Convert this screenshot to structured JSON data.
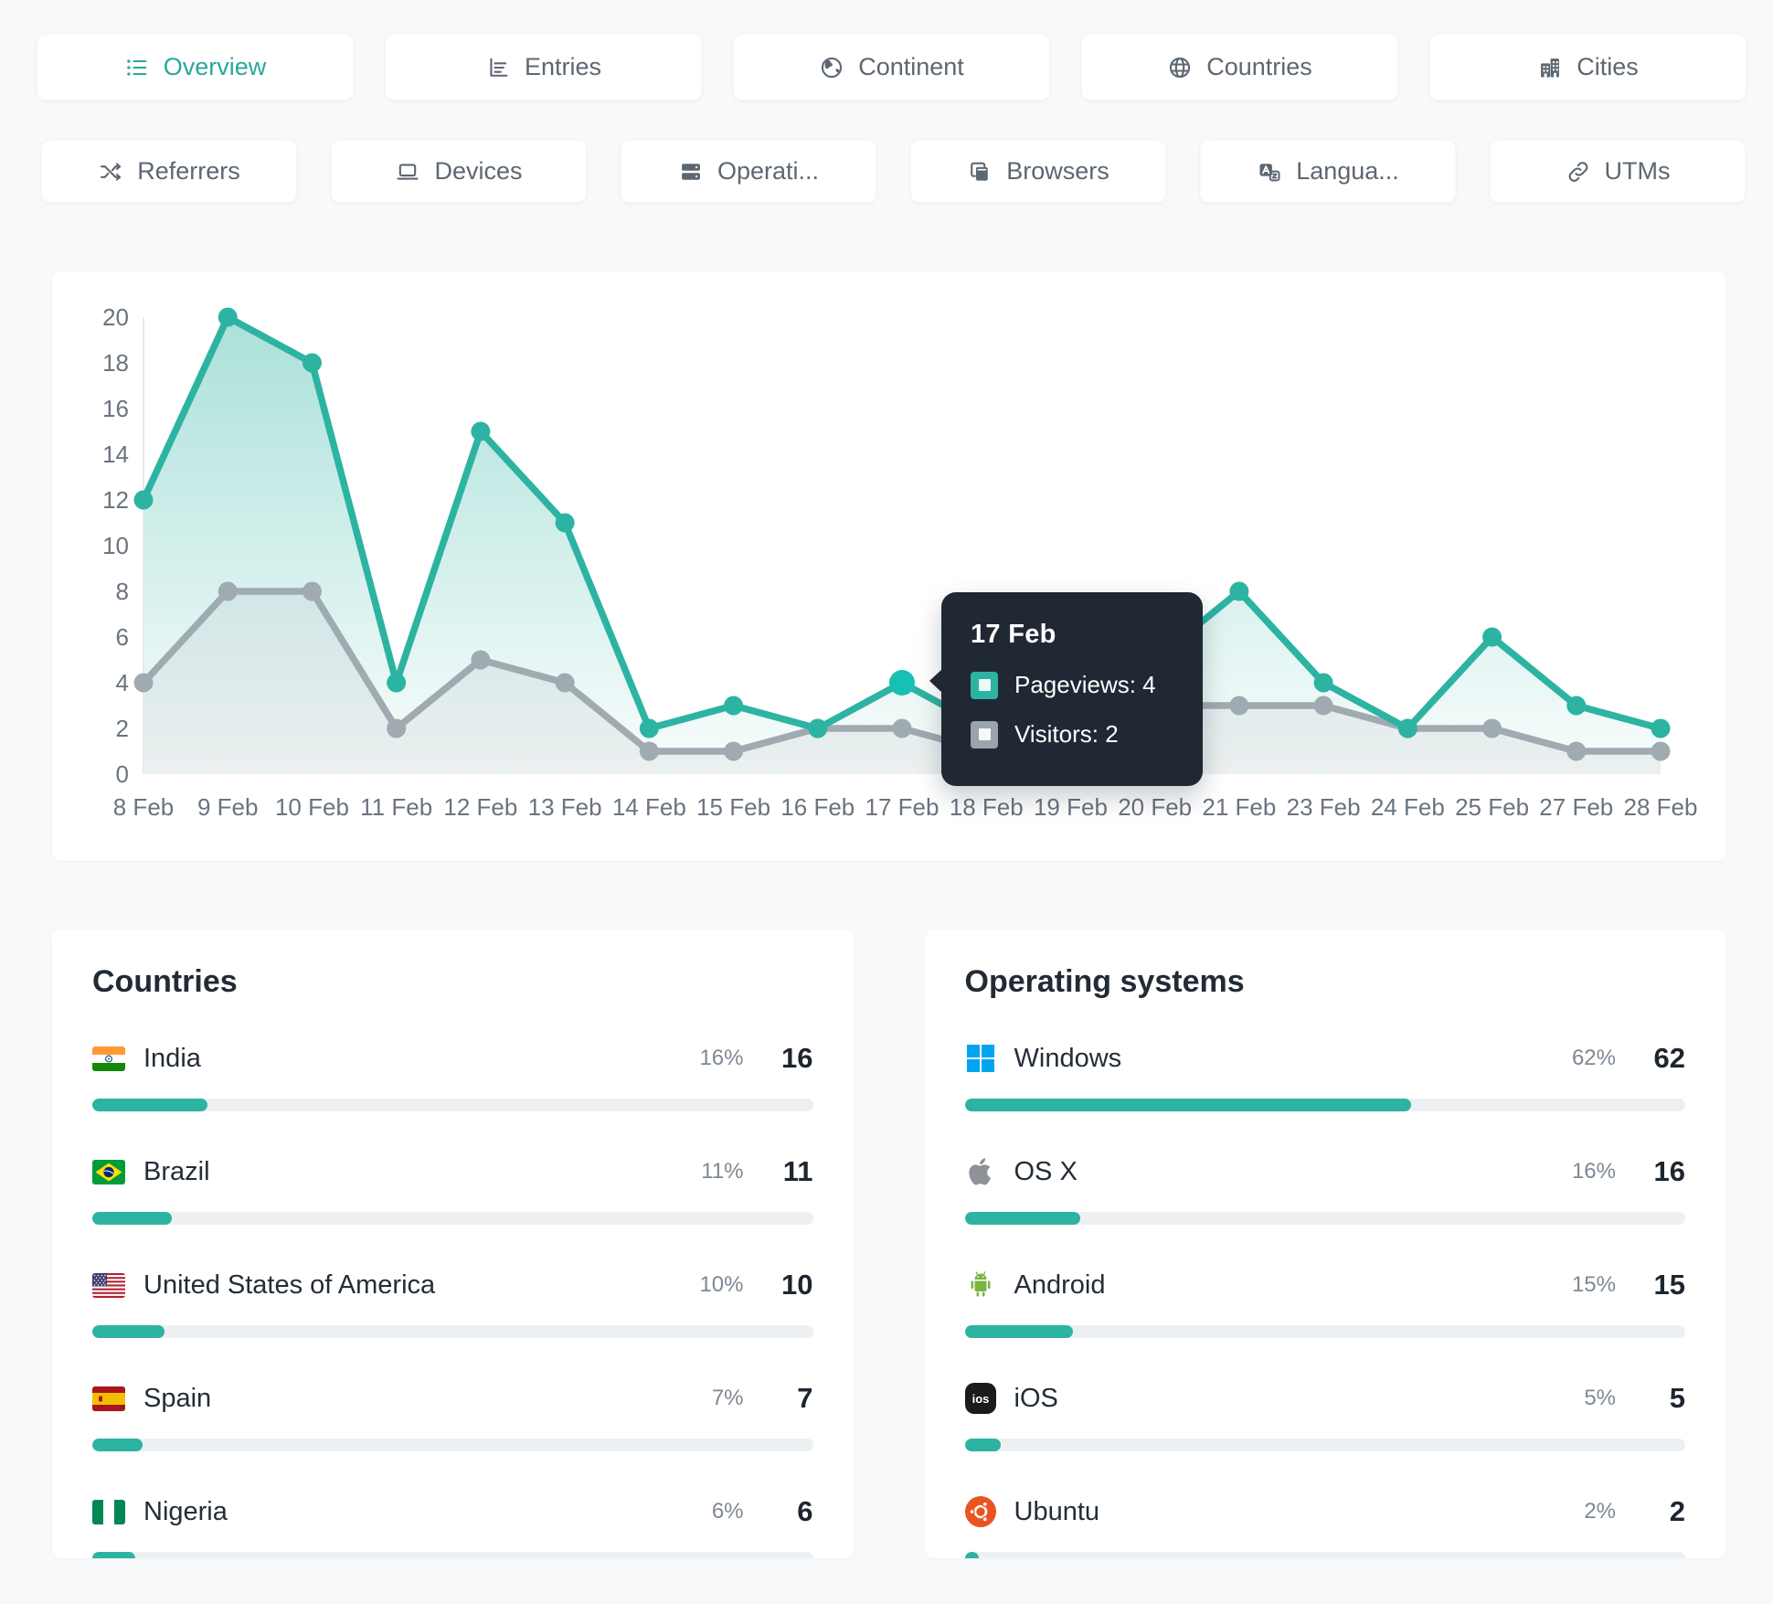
{
  "colors": {
    "accent": "#2db3a2",
    "secondary_line": "#a0aab1",
    "highlight_dot": "#16c0b2",
    "tooltip_bg": "#202834",
    "page_bg": "#f7f9fa",
    "axis_text": "#6a737e"
  },
  "nav": {
    "row1": [
      {
        "label": "Overview",
        "icon": "list-icon",
        "active": true
      },
      {
        "label": "Entries",
        "icon": "entries-chart-icon",
        "active": false
      },
      {
        "label": "Continent",
        "icon": "continent-globe-icon",
        "active": false
      },
      {
        "label": "Countries",
        "icon": "countries-globe-icon",
        "active": false
      },
      {
        "label": "Cities",
        "icon": "cities-building-icon",
        "active": false
      }
    ],
    "row2": [
      {
        "label": "Referrers",
        "icon": "shuffle-icon",
        "active": false
      },
      {
        "label": "Devices",
        "icon": "laptop-icon",
        "active": false
      },
      {
        "label": "Operati...",
        "icon": "server-icon",
        "active": false
      },
      {
        "label": "Browsers",
        "icon": "browser-icon",
        "active": false
      },
      {
        "label": "Langua...",
        "icon": "translate-icon",
        "active": false
      },
      {
        "label": "UTMs",
        "icon": "link-icon",
        "active": false
      }
    ]
  },
  "chart_data": {
    "type": "line",
    "categories": [
      "8 Feb",
      "9 Feb",
      "10 Feb",
      "11 Feb",
      "12 Feb",
      "13 Feb",
      "14 Feb",
      "15 Feb",
      "16 Feb",
      "17 Feb",
      "18 Feb",
      "19 Feb",
      "20 Feb",
      "21 Feb",
      "23 Feb",
      "24 Feb",
      "25 Feb",
      "27 Feb",
      "28 Feb"
    ],
    "series": [
      {
        "name": "Pageviews",
        "color": "#2db3a2",
        "values": [
          12,
          20,
          18,
          4,
          15,
          11,
          2,
          3,
          2,
          4,
          2,
          3,
          5,
          8,
          4,
          2,
          6,
          3,
          2
        ]
      },
      {
        "name": "Visitors",
        "color": "#a0aab1",
        "values": [
          4,
          8,
          8,
          2,
          5,
          4,
          1,
          1,
          2,
          2,
          1,
          1,
          3,
          3,
          3,
          2,
          2,
          1,
          1
        ]
      }
    ],
    "title": "",
    "xlabel": "",
    "ylabel": "",
    "ylim": [
      0,
      20
    ],
    "yticks": [
      0,
      2,
      4,
      6,
      8,
      10,
      12,
      14,
      16,
      18,
      20
    ],
    "grid": false,
    "legend_position": "none",
    "active_point": "17 Feb"
  },
  "tooltip": {
    "title": "17 Feb",
    "rows": [
      {
        "label": "Pageviews: 4",
        "color": "#2db3a2"
      },
      {
        "label": "Visitors: 2",
        "color": "#9aa4ab"
      }
    ]
  },
  "panels": [
    {
      "title": "Countries",
      "rows": [
        {
          "label": "India",
          "icon": "india-flag",
          "percent": "16%",
          "value": "16"
        },
        {
          "label": "Brazil",
          "icon": "brazil-flag",
          "percent": "11%",
          "value": "11"
        },
        {
          "label": "United States of America",
          "icon": "usa-flag",
          "percent": "10%",
          "value": "10"
        },
        {
          "label": "Spain",
          "icon": "spain-flag",
          "percent": "7%",
          "value": "7"
        },
        {
          "label": "Nigeria",
          "icon": "nigeria-flag",
          "percent": "6%",
          "value": "6"
        }
      ]
    },
    {
      "title": "Operating systems",
      "rows": [
        {
          "label": "Windows",
          "icon": "windows-logo-icon",
          "percent": "62%",
          "value": "62"
        },
        {
          "label": "OS X",
          "icon": "apple-logo-icon",
          "percent": "16%",
          "value": "16"
        },
        {
          "label": "Android",
          "icon": "android-logo-icon",
          "percent": "15%",
          "value": "15"
        },
        {
          "label": "iOS",
          "icon": "ios-logo-icon",
          "percent": "5%",
          "value": "5"
        },
        {
          "label": "Ubuntu",
          "icon": "ubuntu-logo-icon",
          "percent": "2%",
          "value": "2"
        }
      ]
    }
  ]
}
